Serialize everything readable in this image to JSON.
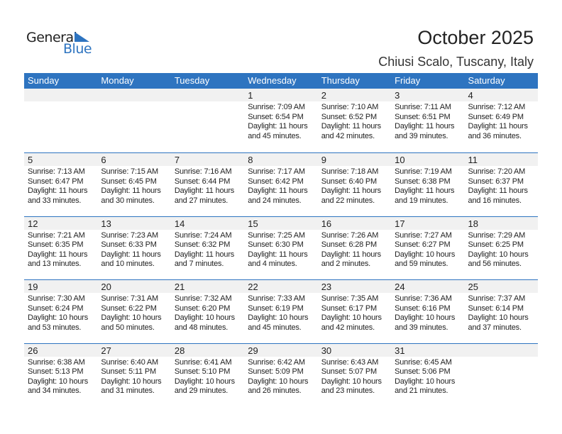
{
  "logo": {
    "general": "General",
    "blue": "Blue"
  },
  "title": "October 2025",
  "location": "Chiusi Scalo, Tuscany, Italy",
  "colors": {
    "accent": "#2e74c0",
    "band": "#f1f1f1"
  },
  "weekdays": [
    "Sunday",
    "Monday",
    "Tuesday",
    "Wednesday",
    "Thursday",
    "Friday",
    "Saturday"
  ],
  "weeks": [
    [
      null,
      null,
      null,
      {
        "day": "1",
        "sunrise": "Sunrise: 7:09 AM",
        "sunset": "Sunset: 6:54 PM",
        "daylight": "Daylight: 11 hours",
        "minutes": "and 45 minutes."
      },
      {
        "day": "2",
        "sunrise": "Sunrise: 7:10 AM",
        "sunset": "Sunset: 6:52 PM",
        "daylight": "Daylight: 11 hours",
        "minutes": "and 42 minutes."
      },
      {
        "day": "3",
        "sunrise": "Sunrise: 7:11 AM",
        "sunset": "Sunset: 6:51 PM",
        "daylight": "Daylight: 11 hours",
        "minutes": "and 39 minutes."
      },
      {
        "day": "4",
        "sunrise": "Sunrise: 7:12 AM",
        "sunset": "Sunset: 6:49 PM",
        "daylight": "Daylight: 11 hours",
        "minutes": "and 36 minutes."
      }
    ],
    [
      {
        "day": "5",
        "sunrise": "Sunrise: 7:13 AM",
        "sunset": "Sunset: 6:47 PM",
        "daylight": "Daylight: 11 hours",
        "minutes": "and 33 minutes."
      },
      {
        "day": "6",
        "sunrise": "Sunrise: 7:15 AM",
        "sunset": "Sunset: 6:45 PM",
        "daylight": "Daylight: 11 hours",
        "minutes": "and 30 minutes."
      },
      {
        "day": "7",
        "sunrise": "Sunrise: 7:16 AM",
        "sunset": "Sunset: 6:44 PM",
        "daylight": "Daylight: 11 hours",
        "minutes": "and 27 minutes."
      },
      {
        "day": "8",
        "sunrise": "Sunrise: 7:17 AM",
        "sunset": "Sunset: 6:42 PM",
        "daylight": "Daylight: 11 hours",
        "minutes": "and 24 minutes."
      },
      {
        "day": "9",
        "sunrise": "Sunrise: 7:18 AM",
        "sunset": "Sunset: 6:40 PM",
        "daylight": "Daylight: 11 hours",
        "minutes": "and 22 minutes."
      },
      {
        "day": "10",
        "sunrise": "Sunrise: 7:19 AM",
        "sunset": "Sunset: 6:38 PM",
        "daylight": "Daylight: 11 hours",
        "minutes": "and 19 minutes."
      },
      {
        "day": "11",
        "sunrise": "Sunrise: 7:20 AM",
        "sunset": "Sunset: 6:37 PM",
        "daylight": "Daylight: 11 hours",
        "minutes": "and 16 minutes."
      }
    ],
    [
      {
        "day": "12",
        "sunrise": "Sunrise: 7:21 AM",
        "sunset": "Sunset: 6:35 PM",
        "daylight": "Daylight: 11 hours",
        "minutes": "and 13 minutes."
      },
      {
        "day": "13",
        "sunrise": "Sunrise: 7:23 AM",
        "sunset": "Sunset: 6:33 PM",
        "daylight": "Daylight: 11 hours",
        "minutes": "and 10 minutes."
      },
      {
        "day": "14",
        "sunrise": "Sunrise: 7:24 AM",
        "sunset": "Sunset: 6:32 PM",
        "daylight": "Daylight: 11 hours",
        "minutes": "and 7 minutes."
      },
      {
        "day": "15",
        "sunrise": "Sunrise: 7:25 AM",
        "sunset": "Sunset: 6:30 PM",
        "daylight": "Daylight: 11 hours",
        "minutes": "and 4 minutes."
      },
      {
        "day": "16",
        "sunrise": "Sunrise: 7:26 AM",
        "sunset": "Sunset: 6:28 PM",
        "daylight": "Daylight: 11 hours",
        "minutes": "and 2 minutes."
      },
      {
        "day": "17",
        "sunrise": "Sunrise: 7:27 AM",
        "sunset": "Sunset: 6:27 PM",
        "daylight": "Daylight: 10 hours",
        "minutes": "and 59 minutes."
      },
      {
        "day": "18",
        "sunrise": "Sunrise: 7:29 AM",
        "sunset": "Sunset: 6:25 PM",
        "daylight": "Daylight: 10 hours",
        "minutes": "and 56 minutes."
      }
    ],
    [
      {
        "day": "19",
        "sunrise": "Sunrise: 7:30 AM",
        "sunset": "Sunset: 6:24 PM",
        "daylight": "Daylight: 10 hours",
        "minutes": "and 53 minutes."
      },
      {
        "day": "20",
        "sunrise": "Sunrise: 7:31 AM",
        "sunset": "Sunset: 6:22 PM",
        "daylight": "Daylight: 10 hours",
        "minutes": "and 50 minutes."
      },
      {
        "day": "21",
        "sunrise": "Sunrise: 7:32 AM",
        "sunset": "Sunset: 6:20 PM",
        "daylight": "Daylight: 10 hours",
        "minutes": "and 48 minutes."
      },
      {
        "day": "22",
        "sunrise": "Sunrise: 7:33 AM",
        "sunset": "Sunset: 6:19 PM",
        "daylight": "Daylight: 10 hours",
        "minutes": "and 45 minutes."
      },
      {
        "day": "23",
        "sunrise": "Sunrise: 7:35 AM",
        "sunset": "Sunset: 6:17 PM",
        "daylight": "Daylight: 10 hours",
        "minutes": "and 42 minutes."
      },
      {
        "day": "24",
        "sunrise": "Sunrise: 7:36 AM",
        "sunset": "Sunset: 6:16 PM",
        "daylight": "Daylight: 10 hours",
        "minutes": "and 39 minutes."
      },
      {
        "day": "25",
        "sunrise": "Sunrise: 7:37 AM",
        "sunset": "Sunset: 6:14 PM",
        "daylight": "Daylight: 10 hours",
        "minutes": "and 37 minutes."
      }
    ],
    [
      {
        "day": "26",
        "sunrise": "Sunrise: 6:38 AM",
        "sunset": "Sunset: 5:13 PM",
        "daylight": "Daylight: 10 hours",
        "minutes": "and 34 minutes."
      },
      {
        "day": "27",
        "sunrise": "Sunrise: 6:40 AM",
        "sunset": "Sunset: 5:11 PM",
        "daylight": "Daylight: 10 hours",
        "minutes": "and 31 minutes."
      },
      {
        "day": "28",
        "sunrise": "Sunrise: 6:41 AM",
        "sunset": "Sunset: 5:10 PM",
        "daylight": "Daylight: 10 hours",
        "minutes": "and 29 minutes."
      },
      {
        "day": "29",
        "sunrise": "Sunrise: 6:42 AM",
        "sunset": "Sunset: 5:09 PM",
        "daylight": "Daylight: 10 hours",
        "minutes": "and 26 minutes."
      },
      {
        "day": "30",
        "sunrise": "Sunrise: 6:43 AM",
        "sunset": "Sunset: 5:07 PM",
        "daylight": "Daylight: 10 hours",
        "minutes": "and 23 minutes."
      },
      {
        "day": "31",
        "sunrise": "Sunrise: 6:45 AM",
        "sunset": "Sunset: 5:06 PM",
        "daylight": "Daylight: 10 hours",
        "minutes": "and 21 minutes."
      },
      null
    ]
  ]
}
